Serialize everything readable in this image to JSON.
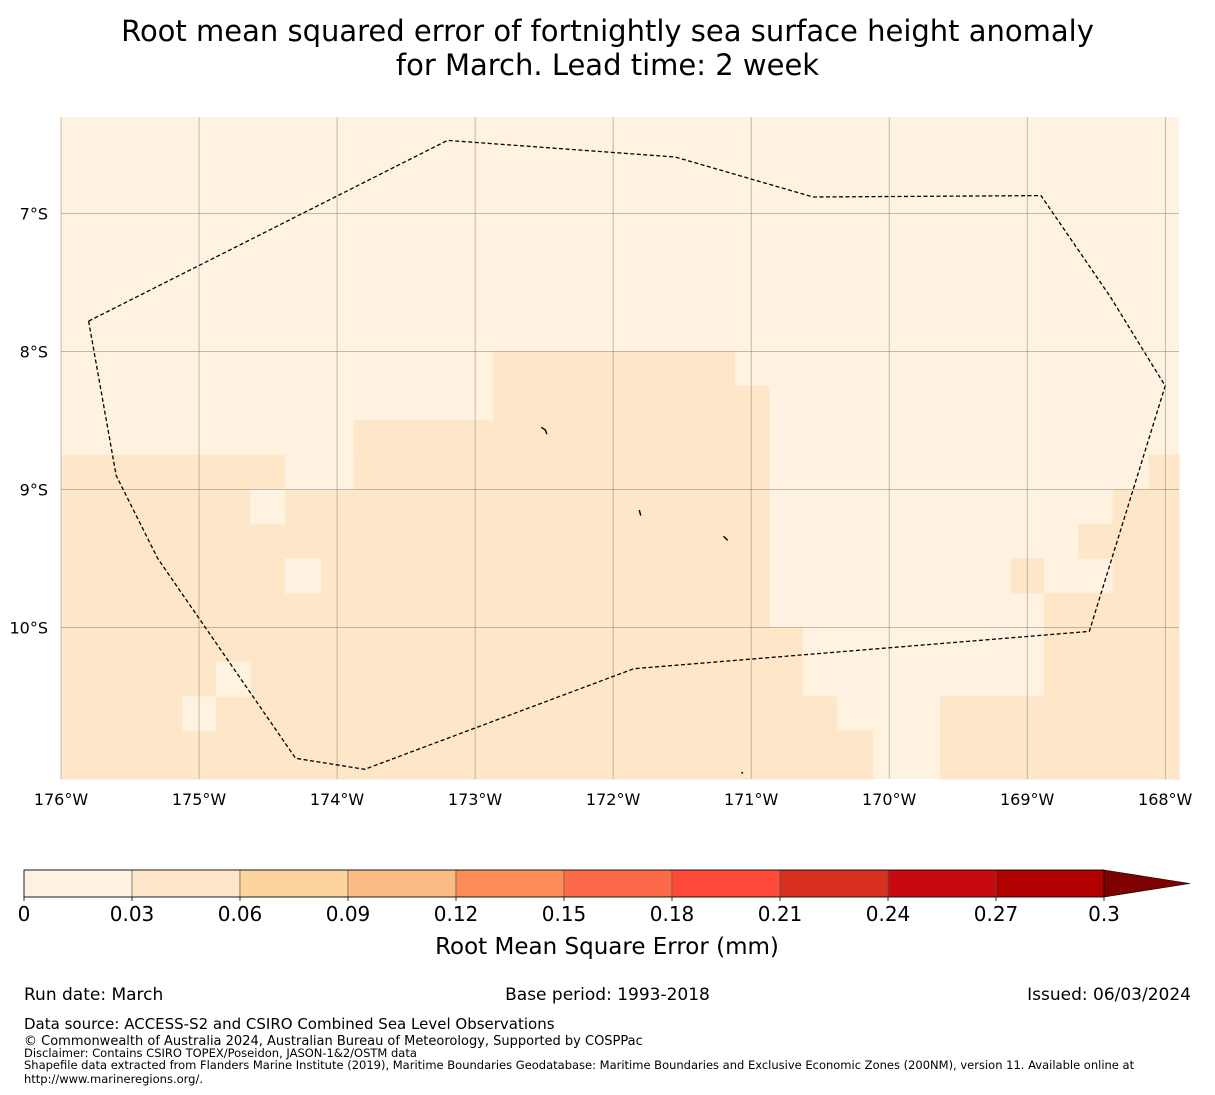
{
  "title": {
    "line1": "Root mean squared error of fortnightly sea surface height anomaly",
    "line2": "for March. Lead time: 2 week"
  },
  "colors": {
    "background": "#ffffff",
    "band_0_003": "#fff2e0",
    "band_003_006": "#fee6c8",
    "outline": "#000000",
    "gridline": "#7f7f7f"
  },
  "map": {
    "lon_range": [
      -176,
      -167.9
    ],
    "lat_range": [
      -11.1,
      -6.3
    ],
    "lon_ticks": [
      {
        "value": -176,
        "label": "176°W"
      },
      {
        "value": -175,
        "label": "175°W"
      },
      {
        "value": -174,
        "label": "174°W"
      },
      {
        "value": -173,
        "label": "173°W"
      },
      {
        "value": -172,
        "label": "172°W"
      },
      {
        "value": -171,
        "label": "171°W"
      },
      {
        "value": -170,
        "label": "170°W"
      },
      {
        "value": -169,
        "label": "169°W"
      },
      {
        "value": -168,
        "label": "168°W"
      }
    ],
    "lat_ticks": [
      {
        "value": -7,
        "label": "7°S"
      },
      {
        "value": -8,
        "label": "8°S"
      },
      {
        "value": -9,
        "label": "9°S"
      },
      {
        "value": -10,
        "label": "10°S"
      }
    ],
    "eez_outline": [
      [
        -175.8,
        -7.78
      ],
      [
        -175.6,
        -8.9
      ],
      [
        -175.3,
        -9.5
      ],
      [
        -174.3,
        -10.95
      ],
      [
        -173.8,
        -11.03
      ],
      [
        -171.85,
        -10.3
      ],
      [
        -168.55,
        -10.03
      ],
      [
        -168.0,
        -8.25
      ],
      [
        -168.4,
        -7.6
      ],
      [
        -168.9,
        -6.87
      ],
      [
        -170.55,
        -6.88
      ],
      [
        -171.55,
        -6.59
      ],
      [
        -173.2,
        -6.47
      ],
      [
        -175.8,
        -7.78
      ]
    ],
    "field_cells": [
      {
        "lon": [
          -176.0,
          -175.12
        ],
        "lat": [
          -9.0,
          -8.75
        ],
        "band": 1
      },
      {
        "lon": [
          -176.0,
          -174.63
        ],
        "lat": [
          -11.1,
          -9.0
        ],
        "band": 1
      },
      {
        "lon": [
          -175.12,
          -174.38
        ],
        "lat": [
          -9.0,
          -8.75
        ],
        "band": 1
      },
      {
        "lon": [
          -174.63,
          -172.87
        ],
        "lat": [
          -11.1,
          -8.75
        ],
        "band": 1
      },
      {
        "lon": [
          -173.88,
          -173.38
        ],
        "lat": [
          -8.75,
          -8.5
        ],
        "band": 1
      },
      {
        "lon": [
          -173.38,
          -172.87
        ],
        "lat": [
          -8.75,
          -8.5
        ],
        "band": 1
      },
      {
        "lon": [
          -172.87,
          -171.12
        ],
        "lat": [
          -11.1,
          -8.0
        ],
        "band": 1
      },
      {
        "lon": [
          -171.12,
          -170.87
        ],
        "lat": [
          -11.1,
          -8.25
        ],
        "band": 1
      },
      {
        "lon": [
          -170.87,
          -170.63
        ],
        "lat": [
          -11.1,
          -10.0
        ],
        "band": 1
      },
      {
        "lon": [
          -170.63,
          -170.38
        ],
        "lat": [
          -11.1,
          -10.5
        ],
        "band": 1
      },
      {
        "lon": [
          -170.38,
          -170.12
        ],
        "lat": [
          -11.1,
          -10.75
        ],
        "band": 1
      },
      {
        "lon": [
          -169.63,
          -168.88
        ],
        "lat": [
          -11.1,
          -10.5
        ],
        "band": 1
      },
      {
        "lon": [
          -168.88,
          -167.9
        ],
        "lat": [
          -11.1,
          -9.75
        ],
        "band": 1
      },
      {
        "lon": [
          -169.12,
          -168.88
        ],
        "lat": [
          -9.75,
          -9.5
        ],
        "band": 1
      },
      {
        "lon": [
          -168.63,
          -168.38
        ],
        "lat": [
          -9.5,
          -9.25
        ],
        "band": 1
      },
      {
        "lon": [
          -168.38,
          -167.9
        ],
        "lat": [
          -9.75,
          -9.0
        ],
        "band": 1
      },
      {
        "lon": [
          -168.12,
          -167.9
        ],
        "lat": [
          -9.0,
          -8.75
        ],
        "band": 1
      }
    ],
    "field_cells_light": [
      {
        "lon": [
          -174.63,
          -174.38
        ],
        "lat": [
          -9.25,
          -9.0
        ],
        "band": 0
      },
      {
        "lon": [
          -174.38,
          -174.12
        ],
        "lat": [
          -9.75,
          -9.5
        ],
        "band": 0
      },
      {
        "lon": [
          -174.88,
          -174.63
        ],
        "lat": [
          -10.5,
          -10.25
        ],
        "band": 0
      },
      {
        "lon": [
          -175.12,
          -174.88
        ],
        "lat": [
          -10.75,
          -10.5
        ],
        "band": 0
      },
      {
        "lon": [
          -174.38,
          -173.88
        ],
        "lat": [
          -9.0,
          -8.75
        ],
        "band": 0
      }
    ],
    "islands": [
      [
        [
          -172.52,
          -8.55
        ],
        [
          -172.49,
          -8.57
        ],
        [
          -172.48,
          -8.6
        ]
      ],
      [
        [
          -171.81,
          -9.15
        ],
        [
          -171.8,
          -9.19
        ]
      ],
      [
        [
          -171.2,
          -9.34
        ],
        [
          -171.17,
          -9.37
        ]
      ],
      [
        [
          -171.07,
          -11.05
        ],
        [
          -171.06,
          -11.06
        ]
      ]
    ]
  },
  "colorbar": {
    "colors": [
      "#fff2e0",
      "#fee6c8",
      "#fdd49e",
      "#fdbb84",
      "#fc8d59",
      "#fc6a4a",
      "#ff4a3a",
      "#d7301f",
      "#c80a10",
      "#b10000"
    ],
    "extend_color": "#7f0000",
    "boundaries": [
      "0",
      "0.03",
      "0.06",
      "0.09",
      "0.12",
      "0.15",
      "0.18",
      "0.21",
      "0.24",
      "0.27",
      "0.3"
    ],
    "label": "Root Mean Square Error (mm)"
  },
  "footer": {
    "run_date": "Run date: March",
    "base_period": "Base period: 1993-2018",
    "issued": "Issued: 06/03/2024",
    "data_source": "Data source: ACCESS-S2 and CSIRO Combined Sea Level Observations",
    "copyright": "© Commonwealth of Australia 2024, Australian Bureau of Meteorology, Supported by COSPPac",
    "disclaimer": "Disclaimer: Contains CSIRO TOPEX/Poseidon, JASON-1&2/OSTM data",
    "shapefile_line1": "Shapefile data extracted from Flanders Marine Institute (2019), Maritime Boundaries Geodatabase: Maritime Boundaries and Exclusive Economic Zones (200NM), version 11. Available online at",
    "shapefile_line2": "http://www.marineregions.org/."
  }
}
